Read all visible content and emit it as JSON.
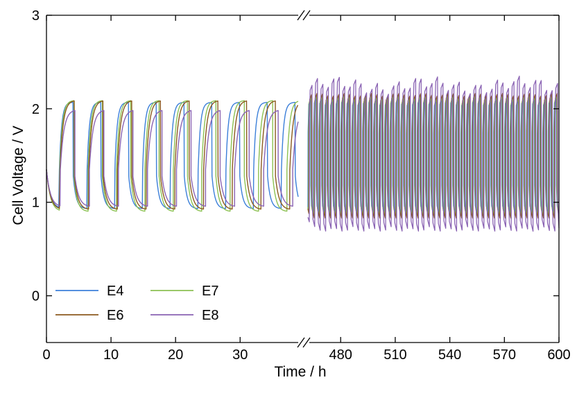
{
  "chart_data": {
    "type": "line",
    "title": "",
    "xlabel": "Time / h",
    "ylabel": "Cell Voltage / V",
    "ylim": [
      -0.5,
      3
    ],
    "y_ticks": [
      "0",
      "1",
      "2",
      "3"
    ],
    "x_segments": [
      {
        "range": [
          0,
          39
        ],
        "ticks": [
          "0",
          "10",
          "20",
          "30"
        ]
      },
      {
        "range": [
          462,
          600
        ],
        "ticks": [
          "480",
          "510",
          "540",
          "570",
          "600"
        ]
      }
    ],
    "axis_break": true,
    "legend_position": "bottom-left",
    "series": [
      {
        "name": "E4",
        "color": "#3b7fd9",
        "cycle_period_h": 4.3,
        "charge_voltage": 2.07,
        "discharge_voltage": 0.93,
        "late_charge_voltage": 2.1,
        "late_discharge_voltage": 0.88
      },
      {
        "name": "E7",
        "color": "#8cc152",
        "cycle_period_h": 4.4,
        "charge_voltage": 2.09,
        "discharge_voltage": 0.9,
        "late_charge_voltage": 2.12,
        "late_discharge_voltage": 0.85
      },
      {
        "name": "E6",
        "color": "#8b5a1e",
        "cycle_period_h": 4.45,
        "charge_voltage": 2.09,
        "discharge_voltage": 0.92,
        "late_charge_voltage": 2.15,
        "late_discharge_voltage": 0.83
      },
      {
        "name": "E8",
        "color": "#8a63b3",
        "cycle_period_h": 4.5,
        "charge_voltage": 1.99,
        "discharge_voltage": 0.95,
        "late_charge_voltage": 2.25,
        "late_discharge_voltage": 0.74
      }
    ]
  }
}
